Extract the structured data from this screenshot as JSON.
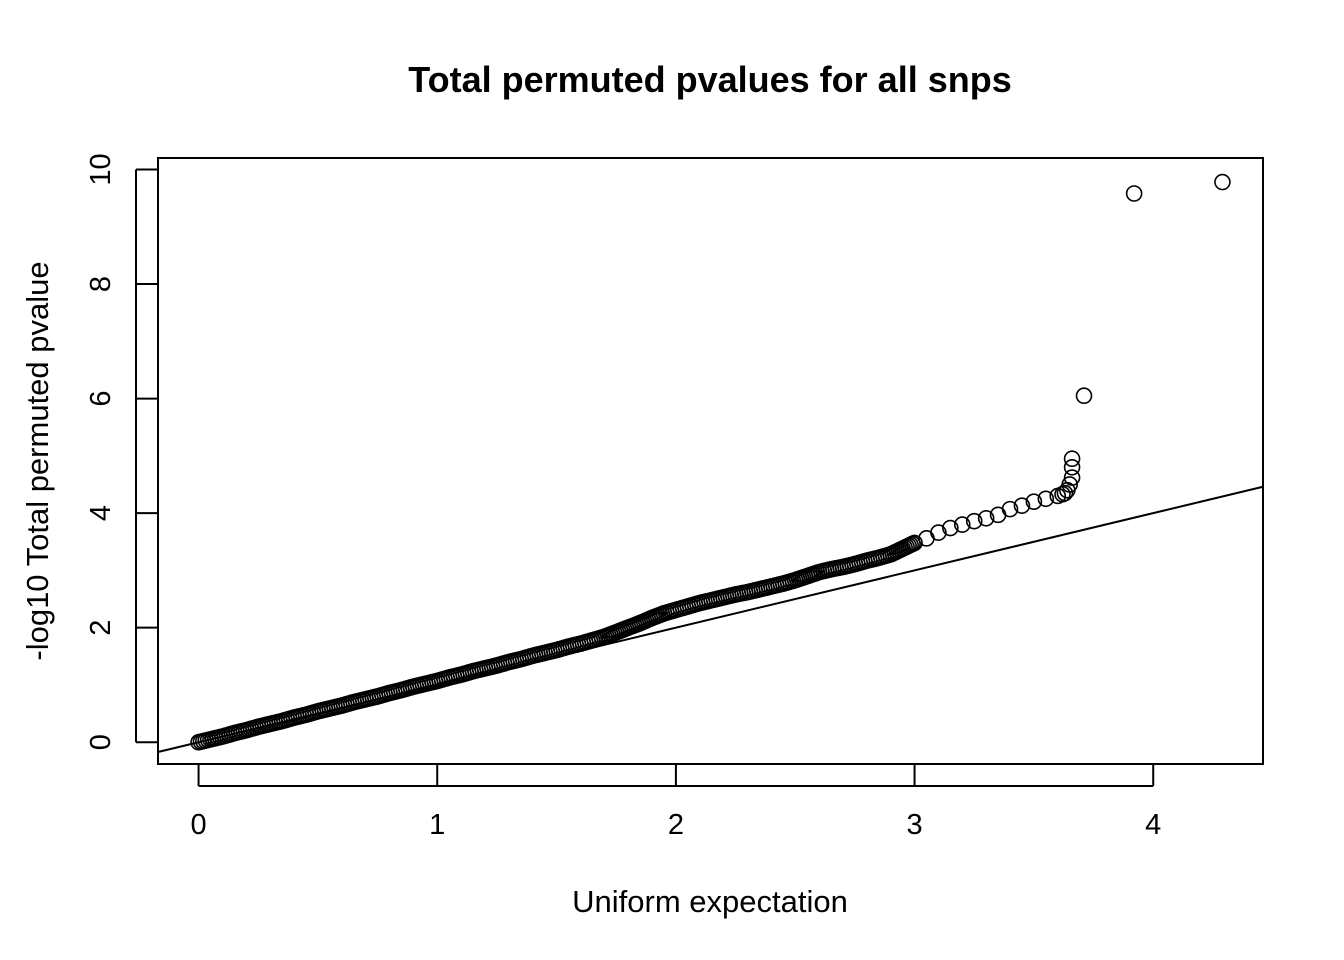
{
  "chart_data": {
    "type": "scatter",
    "title": "Total permuted pvalues for all snps",
    "xlabel": "Uniform expectation",
    "ylabel": "-log10 Total permuted pvalue",
    "xlim": [
      -0.17,
      4.46
    ],
    "ylim": [
      -0.38,
      10.2
    ],
    "x_ticks": [
      0,
      1,
      2,
      3,
      4
    ],
    "y_ticks": [
      0,
      2,
      4,
      6,
      8,
      10
    ],
    "grid": false,
    "legend": "none",
    "reference_line": {
      "type": "abline",
      "intercept": 0,
      "slope": 1
    },
    "series": [
      {
        "marker": "open-circle",
        "color": "#000000",
        "x": [
          0.0,
          0.05,
          0.1,
          0.15,
          0.2,
          0.25,
          0.3,
          0.35,
          0.4,
          0.45,
          0.5,
          0.55,
          0.6,
          0.65,
          0.7,
          0.75,
          0.8,
          0.85,
          0.9,
          0.95,
          1.0,
          1.05,
          1.1,
          1.15,
          1.2,
          1.25,
          1.3,
          1.35,
          1.4,
          1.45,
          1.5,
          1.55,
          1.6,
          1.65,
          1.7,
          1.75,
          1.8,
          1.85,
          1.9,
          1.95,
          2.0,
          2.05,
          2.1,
          2.15,
          2.2,
          2.25,
          2.3,
          2.35,
          2.4,
          2.45,
          2.5,
          2.55,
          2.6,
          2.65,
          2.7,
          2.75,
          2.8,
          2.85,
          2.9,
          2.95,
          3.0,
          3.05,
          3.1,
          3.15,
          3.2,
          3.25,
          3.3,
          3.35,
          3.4,
          3.45,
          3.5,
          3.55,
          3.6,
          3.62,
          3.63,
          3.64,
          3.65,
          3.66,
          3.66,
          3.66,
          3.71,
          3.92,
          4.29
        ],
        "y": [
          0.0,
          0.05,
          0.1,
          0.16,
          0.21,
          0.27,
          0.32,
          0.37,
          0.43,
          0.48,
          0.54,
          0.59,
          0.64,
          0.7,
          0.75,
          0.8,
          0.86,
          0.91,
          0.97,
          1.02,
          1.07,
          1.13,
          1.18,
          1.24,
          1.29,
          1.34,
          1.4,
          1.45,
          1.51,
          1.56,
          1.61,
          1.67,
          1.72,
          1.78,
          1.84,
          1.92,
          2.0,
          2.08,
          2.17,
          2.25,
          2.31,
          2.37,
          2.43,
          2.48,
          2.53,
          2.58,
          2.62,
          2.67,
          2.72,
          2.77,
          2.83,
          2.9,
          2.97,
          3.02,
          3.06,
          3.11,
          3.17,
          3.22,
          3.28,
          3.38,
          3.48,
          3.56,
          3.66,
          3.74,
          3.8,
          3.86,
          3.91,
          3.97,
          4.07,
          4.13,
          4.2,
          4.25,
          4.3,
          4.33,
          4.35,
          4.4,
          4.5,
          4.62,
          4.8,
          4.95,
          6.05,
          9.58,
          9.78
        ]
      }
    ]
  }
}
